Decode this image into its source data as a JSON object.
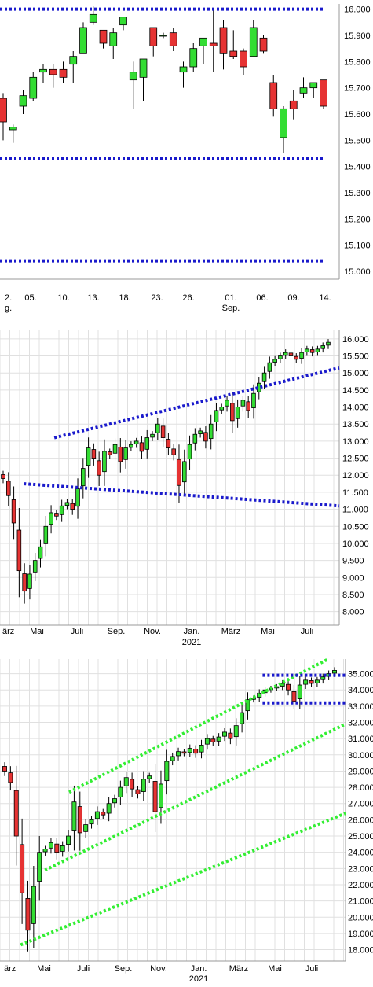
{
  "colors": {
    "up": "#33dd33",
    "down": "#e63333",
    "wick": "#000000",
    "blue_line": "#1a1acc",
    "green_line": "#33ee33",
    "grid": "#e0e0e0"
  },
  "chart_data": [
    {
      "type": "candlestick",
      "x_tick_labels": [
        "2.",
        "05.",
        "10.",
        "13.",
        "18.",
        "23.",
        "26.",
        "01.",
        "06.",
        "09.",
        "14."
      ],
      "x_sub_labels": [
        {
          "text": "g.",
          "under": "2."
        },
        {
          "text": "Sep.",
          "under": "01."
        }
      ],
      "y_tick_labels": [
        "16.000",
        "15.900",
        "15.800",
        "15.700",
        "15.600",
        "15.500",
        "15.400",
        "15.300",
        "15.200",
        "15.100",
        "15.000"
      ],
      "ylim": [
        14.97,
        16.02
      ],
      "grid": false,
      "candles": [
        {
          "o": 15.66,
          "h": 15.68,
          "l": 15.5,
          "c": 15.57
        },
        {
          "o": 15.54,
          "h": 15.56,
          "l": 15.49,
          "c": 15.55
        },
        {
          "o": 15.63,
          "h": 15.69,
          "l": 15.6,
          "c": 15.67
        },
        {
          "o": 15.66,
          "h": 15.76,
          "l": 15.65,
          "c": 15.74
        },
        {
          "o": 15.76,
          "h": 15.79,
          "l": 15.72,
          "c": 15.77
        },
        {
          "o": 15.77,
          "h": 15.79,
          "l": 15.7,
          "c": 15.75
        },
        {
          "o": 15.77,
          "h": 15.8,
          "l": 15.72,
          "c": 15.74
        },
        {
          "o": 15.79,
          "h": 15.84,
          "l": 15.72,
          "c": 15.82
        },
        {
          "o": 15.83,
          "h": 15.95,
          "l": 15.83,
          "c": 15.93
        },
        {
          "o": 15.95,
          "h": 16.01,
          "l": 15.94,
          "c": 15.98
        },
        {
          "o": 15.92,
          "h": 15.92,
          "l": 15.85,
          "c": 15.87
        },
        {
          "o": 15.86,
          "h": 15.93,
          "l": 15.81,
          "c": 15.91
        },
        {
          "o": 15.94,
          "h": 15.97,
          "l": 15.92,
          "c": 15.97
        },
        {
          "o": 15.73,
          "h": 15.8,
          "l": 15.62,
          "c": 15.76
        },
        {
          "o": 15.74,
          "h": 15.81,
          "l": 15.65,
          "c": 15.81
        },
        {
          "o": 15.93,
          "h": 15.93,
          "l": 15.82,
          "c": 15.86
        },
        {
          "o": 15.9,
          "h": 15.91,
          "l": 15.89,
          "c": 15.9
        },
        {
          "o": 15.91,
          "h": 15.93,
          "l": 15.84,
          "c": 15.86
        },
        {
          "o": 15.76,
          "h": 15.8,
          "l": 15.7,
          "c": 15.78
        },
        {
          "o": 15.78,
          "h": 15.87,
          "l": 15.76,
          "c": 15.85
        },
        {
          "o": 15.86,
          "h": 15.89,
          "l": 15.79,
          "c": 15.89
        },
        {
          "o": 15.87,
          "h": 16.0,
          "l": 15.76,
          "c": 15.86
        },
        {
          "o": 15.93,
          "h": 15.96,
          "l": 15.77,
          "c": 15.83
        },
        {
          "o": 15.84,
          "h": 15.92,
          "l": 15.81,
          "c": 15.82
        },
        {
          "o": 15.84,
          "h": 15.85,
          "l": 15.75,
          "c": 15.78
        },
        {
          "o": 15.82,
          "h": 15.96,
          "l": 15.82,
          "c": 15.93
        },
        {
          "o": 15.89,
          "h": 15.9,
          "l": 15.83,
          "c": 15.84
        },
        {
          "o": 15.72,
          "h": 15.75,
          "l": 15.59,
          "c": 15.62
        },
        {
          "o": 15.51,
          "h": 15.63,
          "l": 15.45,
          "c": 15.62
        },
        {
          "o": 15.65,
          "h": 15.69,
          "l": 15.58,
          "c": 15.62
        },
        {
          "o": 15.68,
          "h": 15.74,
          "l": 15.66,
          "c": 15.7
        },
        {
          "o": 15.7,
          "h": 15.72,
          "l": 15.66,
          "c": 15.72
        },
        {
          "o": 15.73,
          "h": 15.73,
          "l": 15.62,
          "c": 15.63
        }
      ],
      "trend_lines": [
        {
          "color": "blue_line",
          "from": [
            0,
            16.0
          ],
          "to": [
            33,
            16.0
          ]
        },
        {
          "color": "blue_line",
          "from": [
            0,
            15.43
          ],
          "to": [
            33,
            15.43
          ]
        },
        {
          "color": "blue_line",
          "from": [
            0,
            15.04
          ],
          "to": [
            33,
            15.04
          ]
        }
      ]
    },
    {
      "type": "candlestick",
      "x_tick_labels": [
        "ärz",
        "Mai",
        "Juli",
        "Sep.",
        "Nov.",
        "Jan.",
        "März",
        "Mai",
        "Juli"
      ],
      "x_sub_labels": [
        {
          "text": "2021",
          "under": "Jan."
        }
      ],
      "y_tick_labels": [
        "16.000",
        "15.500",
        "15.000",
        "14.500",
        "14.000",
        "13.500",
        "13.000",
        "12.500",
        "12.000",
        "11.500",
        "11.000",
        "10.500",
        "10.000",
        "9.500",
        "9.000",
        "8.500",
        "8.000"
      ],
      "ylim": [
        7.6,
        16.25
      ],
      "grid": true,
      "candles_note": "weekly candles, approximate closes",
      "closes": [
        11.9,
        11.4,
        10.6,
        9.2,
        8.6,
        9.1,
        9.5,
        9.9,
        10.5,
        10.9,
        10.8,
        11.1,
        11.2,
        11.0,
        11.6,
        12.2,
        12.8,
        12.5,
        12.0,
        12.7,
        12.6,
        12.9,
        12.4,
        12.8,
        12.9,
        13.0,
        12.7,
        13.1,
        13.2,
        13.5,
        13.1,
        12.8,
        12.6,
        11.7,
        12.4,
        12.9,
        13.2,
        13.3,
        13.0,
        13.5,
        13.9,
        14.0,
        14.2,
        13.6,
        14.0,
        14.2,
        13.9,
        14.4,
        14.7,
        15.0,
        15.3,
        15.4,
        15.5,
        15.6,
        15.5,
        15.4,
        15.6,
        15.7,
        15.6,
        15.7,
        15.8,
        15.9
      ],
      "trend_lines": [
        {
          "color": "blue_line",
          "from": [
            0.16,
            13.1
          ],
          "to": [
            1.0,
            15.15
          ]
        },
        {
          "color": "blue_line",
          "from": [
            0.07,
            11.75
          ],
          "to": [
            1.0,
            11.1
          ]
        }
      ]
    },
    {
      "type": "candlestick",
      "x_tick_labels": [
        "ärz",
        "Mai",
        "Juli",
        "Sep.",
        "Nov.",
        "Jan.",
        "März",
        "Mai",
        "Juli"
      ],
      "x_sub_labels": [
        {
          "text": "2021",
          "under": "Jan."
        }
      ],
      "y_tick_labels": [
        "35.000",
        "34.000",
        "33.000",
        "32.000",
        "31.000",
        "30.000",
        "29.000",
        "28.000",
        "27.000",
        "26.000",
        "25.000",
        "24.000",
        "23.000",
        "22.000",
        "21.000",
        "20.000",
        "19.000",
        "18.000"
      ],
      "ylim": [
        17.3,
        35.9
      ],
      "grid": true,
      "closes": [
        29.0,
        28.3,
        25.0,
        21.5,
        19.2,
        21.9,
        24.0,
        24.2,
        24.6,
        24.0,
        24.4,
        25.0,
        27.1,
        25.2,
        25.7,
        26.0,
        26.5,
        26.3,
        27.0,
        27.3,
        28.0,
        28.6,
        27.9,
        27.6,
        28.5,
        28.7,
        26.5,
        28.2,
        29.6,
        29.9,
        30.2,
        30.1,
        30.4,
        30.1,
        30.6,
        31.0,
        30.8,
        31.1,
        31.4,
        31.0,
        31.8,
        32.6,
        33.4,
        33.5,
        33.8,
        34.0,
        34.1,
        34.2,
        34.4,
        34.0,
        33.3,
        34.3,
        34.6,
        34.4,
        34.6,
        34.8,
        35.0,
        35.2
      ],
      "trend_lines": [
        {
          "color": "green_line",
          "from": [
            0.2,
            27.7
          ],
          "to": [
            0.95,
            35.9
          ]
        },
        {
          "color": "green_line",
          "from": [
            0.13,
            22.9
          ],
          "to": [
            1.0,
            31.9
          ]
        },
        {
          "color": "green_line",
          "from": [
            0.06,
            18.3
          ],
          "to": [
            1.0,
            26.4
          ]
        },
        {
          "color": "blue_line",
          "from": [
            0.76,
            34.9
          ],
          "to": [
            1.0,
            34.9
          ]
        },
        {
          "color": "blue_line",
          "from": [
            0.76,
            33.2
          ],
          "to": [
            1.0,
            33.2
          ]
        }
      ]
    }
  ]
}
